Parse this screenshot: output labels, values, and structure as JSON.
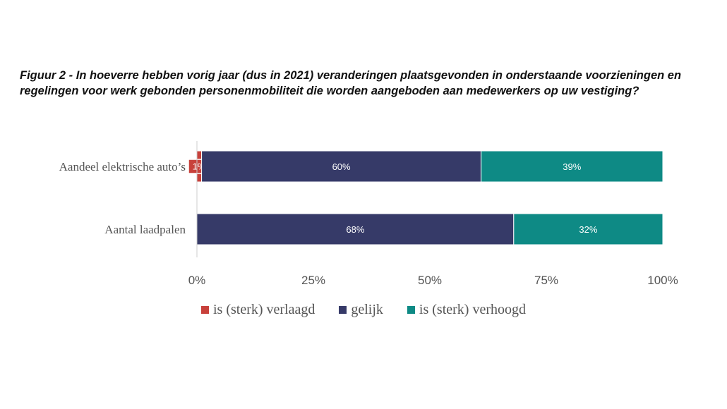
{
  "chart_data": {
    "type": "bar",
    "orientation": "horizontal",
    "stacked": true,
    "title": "Figuur 2 - In hoeverre hebben vorig jaar (dus in 2021) veranderingen plaatsgevonden in onderstaande voorzieningen en regelingen voor werk gebonden personenmobiliteit die worden aangeboden aan medewerkers op uw vestiging?",
    "categories": [
      "Aandeel elektrische auto’s",
      "Aantal laadpalen"
    ],
    "series": [
      {
        "name": "is (sterk) verlaagd",
        "color": "#c8413b",
        "values": [
          1,
          0
        ]
      },
      {
        "name": "gelijk",
        "color": "#363a68",
        "values": [
          60,
          68
        ]
      },
      {
        "name": "is (sterk) verhoogd",
        "color": "#0e8a85",
        "values": [
          39,
          32
        ]
      }
    ],
    "data_labels": [
      [
        "1%",
        "60%",
        "39%"
      ],
      [
        "",
        "68%",
        "32%"
      ]
    ],
    "xlim": [
      0,
      100
    ],
    "x_ticks": [
      "0%",
      "25%",
      "50%",
      "75%",
      "100%"
    ],
    "x_tick_values": [
      0,
      25,
      50,
      75,
      100
    ],
    "grid": false,
    "legend_position": "bottom"
  }
}
